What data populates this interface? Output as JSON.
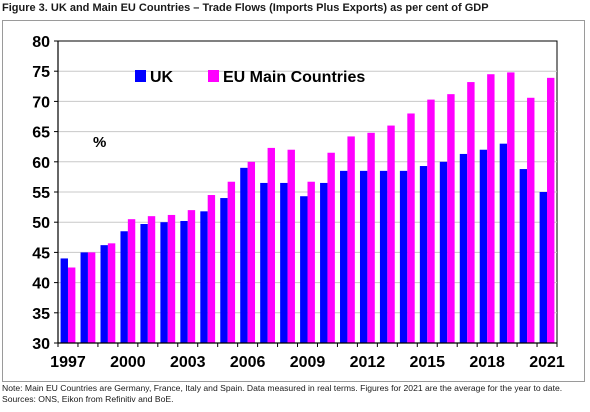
{
  "figure": {
    "title": "Figure 3. UK and Main EU Countries – Trade Flows (Imports Plus Exports) as per cent of GDP",
    "note": "Note: Main EU Countries are Germany, France, Italy and Spain. Data measured in real terms. Figures for 2021 are the average for the year to date. Sources: ONS, Eikon from Refinitiv and BoE."
  },
  "colors": {
    "uk": "#0000FF",
    "eu": "#FF00FF",
    "grid": "#c8c8c8",
    "axis": "#000000"
  },
  "chart_data": {
    "type": "bar",
    "categories": [
      "1997",
      "1998",
      "1999",
      "2000",
      "2001",
      "2002",
      "2003",
      "2004",
      "2005",
      "2006",
      "2007",
      "2008",
      "2009",
      "2010",
      "2011",
      "2012",
      "2013",
      "2014",
      "2015",
      "2016",
      "2017",
      "2018",
      "2019",
      "2020",
      "2021"
    ],
    "x_tick_labels": [
      "1997",
      "2000",
      "2003",
      "2006",
      "2009",
      "2012",
      "2015",
      "2018",
      "2021"
    ],
    "series": [
      {
        "name": "UK",
        "color": "#0000FF",
        "values": [
          44.0,
          45.0,
          46.2,
          48.5,
          49.7,
          50.0,
          50.2,
          51.8,
          54.0,
          59.0,
          56.5,
          56.5,
          54.3,
          56.5,
          58.5,
          58.5,
          58.5,
          58.5,
          59.3,
          60.0,
          61.3,
          62.0,
          63.0,
          58.8,
          55.0
        ]
      },
      {
        "name": "EU Main Countries",
        "color": "#FF00FF",
        "values": [
          42.5,
          45.0,
          46.5,
          50.5,
          51.0,
          51.2,
          52.0,
          54.5,
          56.7,
          60.0,
          62.3,
          62.0,
          56.7,
          61.5,
          64.2,
          64.8,
          66.0,
          68.0,
          70.3,
          71.2,
          73.2,
          74.5,
          74.8,
          70.6,
          73.9
        ]
      }
    ],
    "ylim": [
      30,
      80
    ],
    "y_ticks": [
      30,
      35,
      40,
      45,
      50,
      55,
      60,
      65,
      70,
      75,
      80
    ],
    "unit_label": "%",
    "legend_position": "top-left",
    "grid": true
  }
}
